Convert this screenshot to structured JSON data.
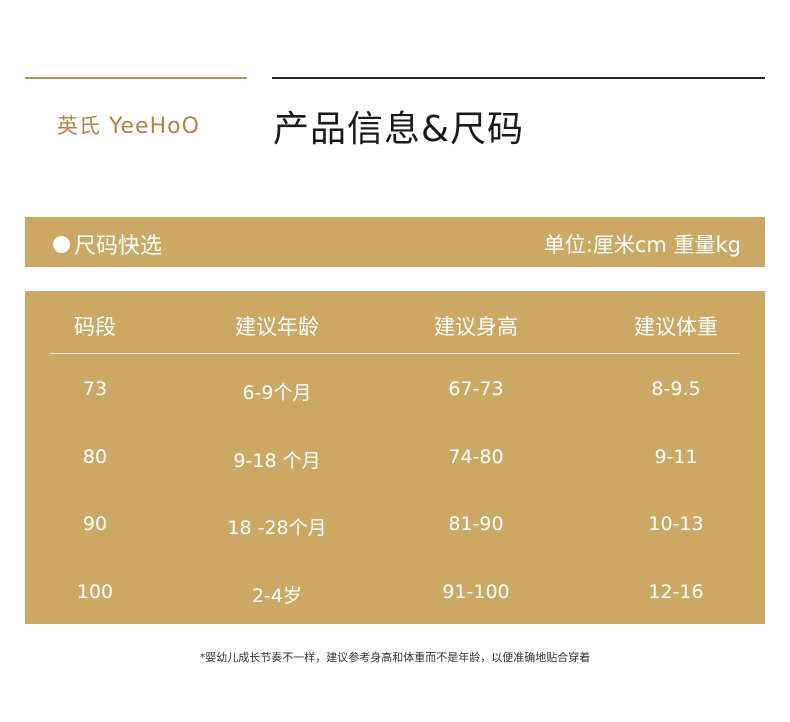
{
  "logo": {
    "cn": "英氏",
    "en": "YeeHoO"
  },
  "title": "产品信息&尺码",
  "bar": {
    "left": "尺码快选",
    "right": "单位:厘米cm 重量kg"
  },
  "table": {
    "headers": [
      "码段",
      "建议年龄",
      "建议身高",
      "建议体重"
    ],
    "rows": [
      [
        "73",
        "6-9个月",
        "67-73",
        "8-9.5"
      ],
      [
        "80",
        "9-18 个月",
        "74-80",
        "9-11"
      ],
      [
        "90",
        "18 -28个月",
        "81-90",
        "10-13"
      ],
      [
        "100",
        "2-4岁",
        "91-100",
        "12-16"
      ]
    ]
  },
  "note": "*婴幼儿成长节奏不一样，建议参考身高和体重而不是年龄，以便准确地贴合穿着",
  "colors": {
    "gold": "#cca865",
    "logo": "#b08448"
  }
}
